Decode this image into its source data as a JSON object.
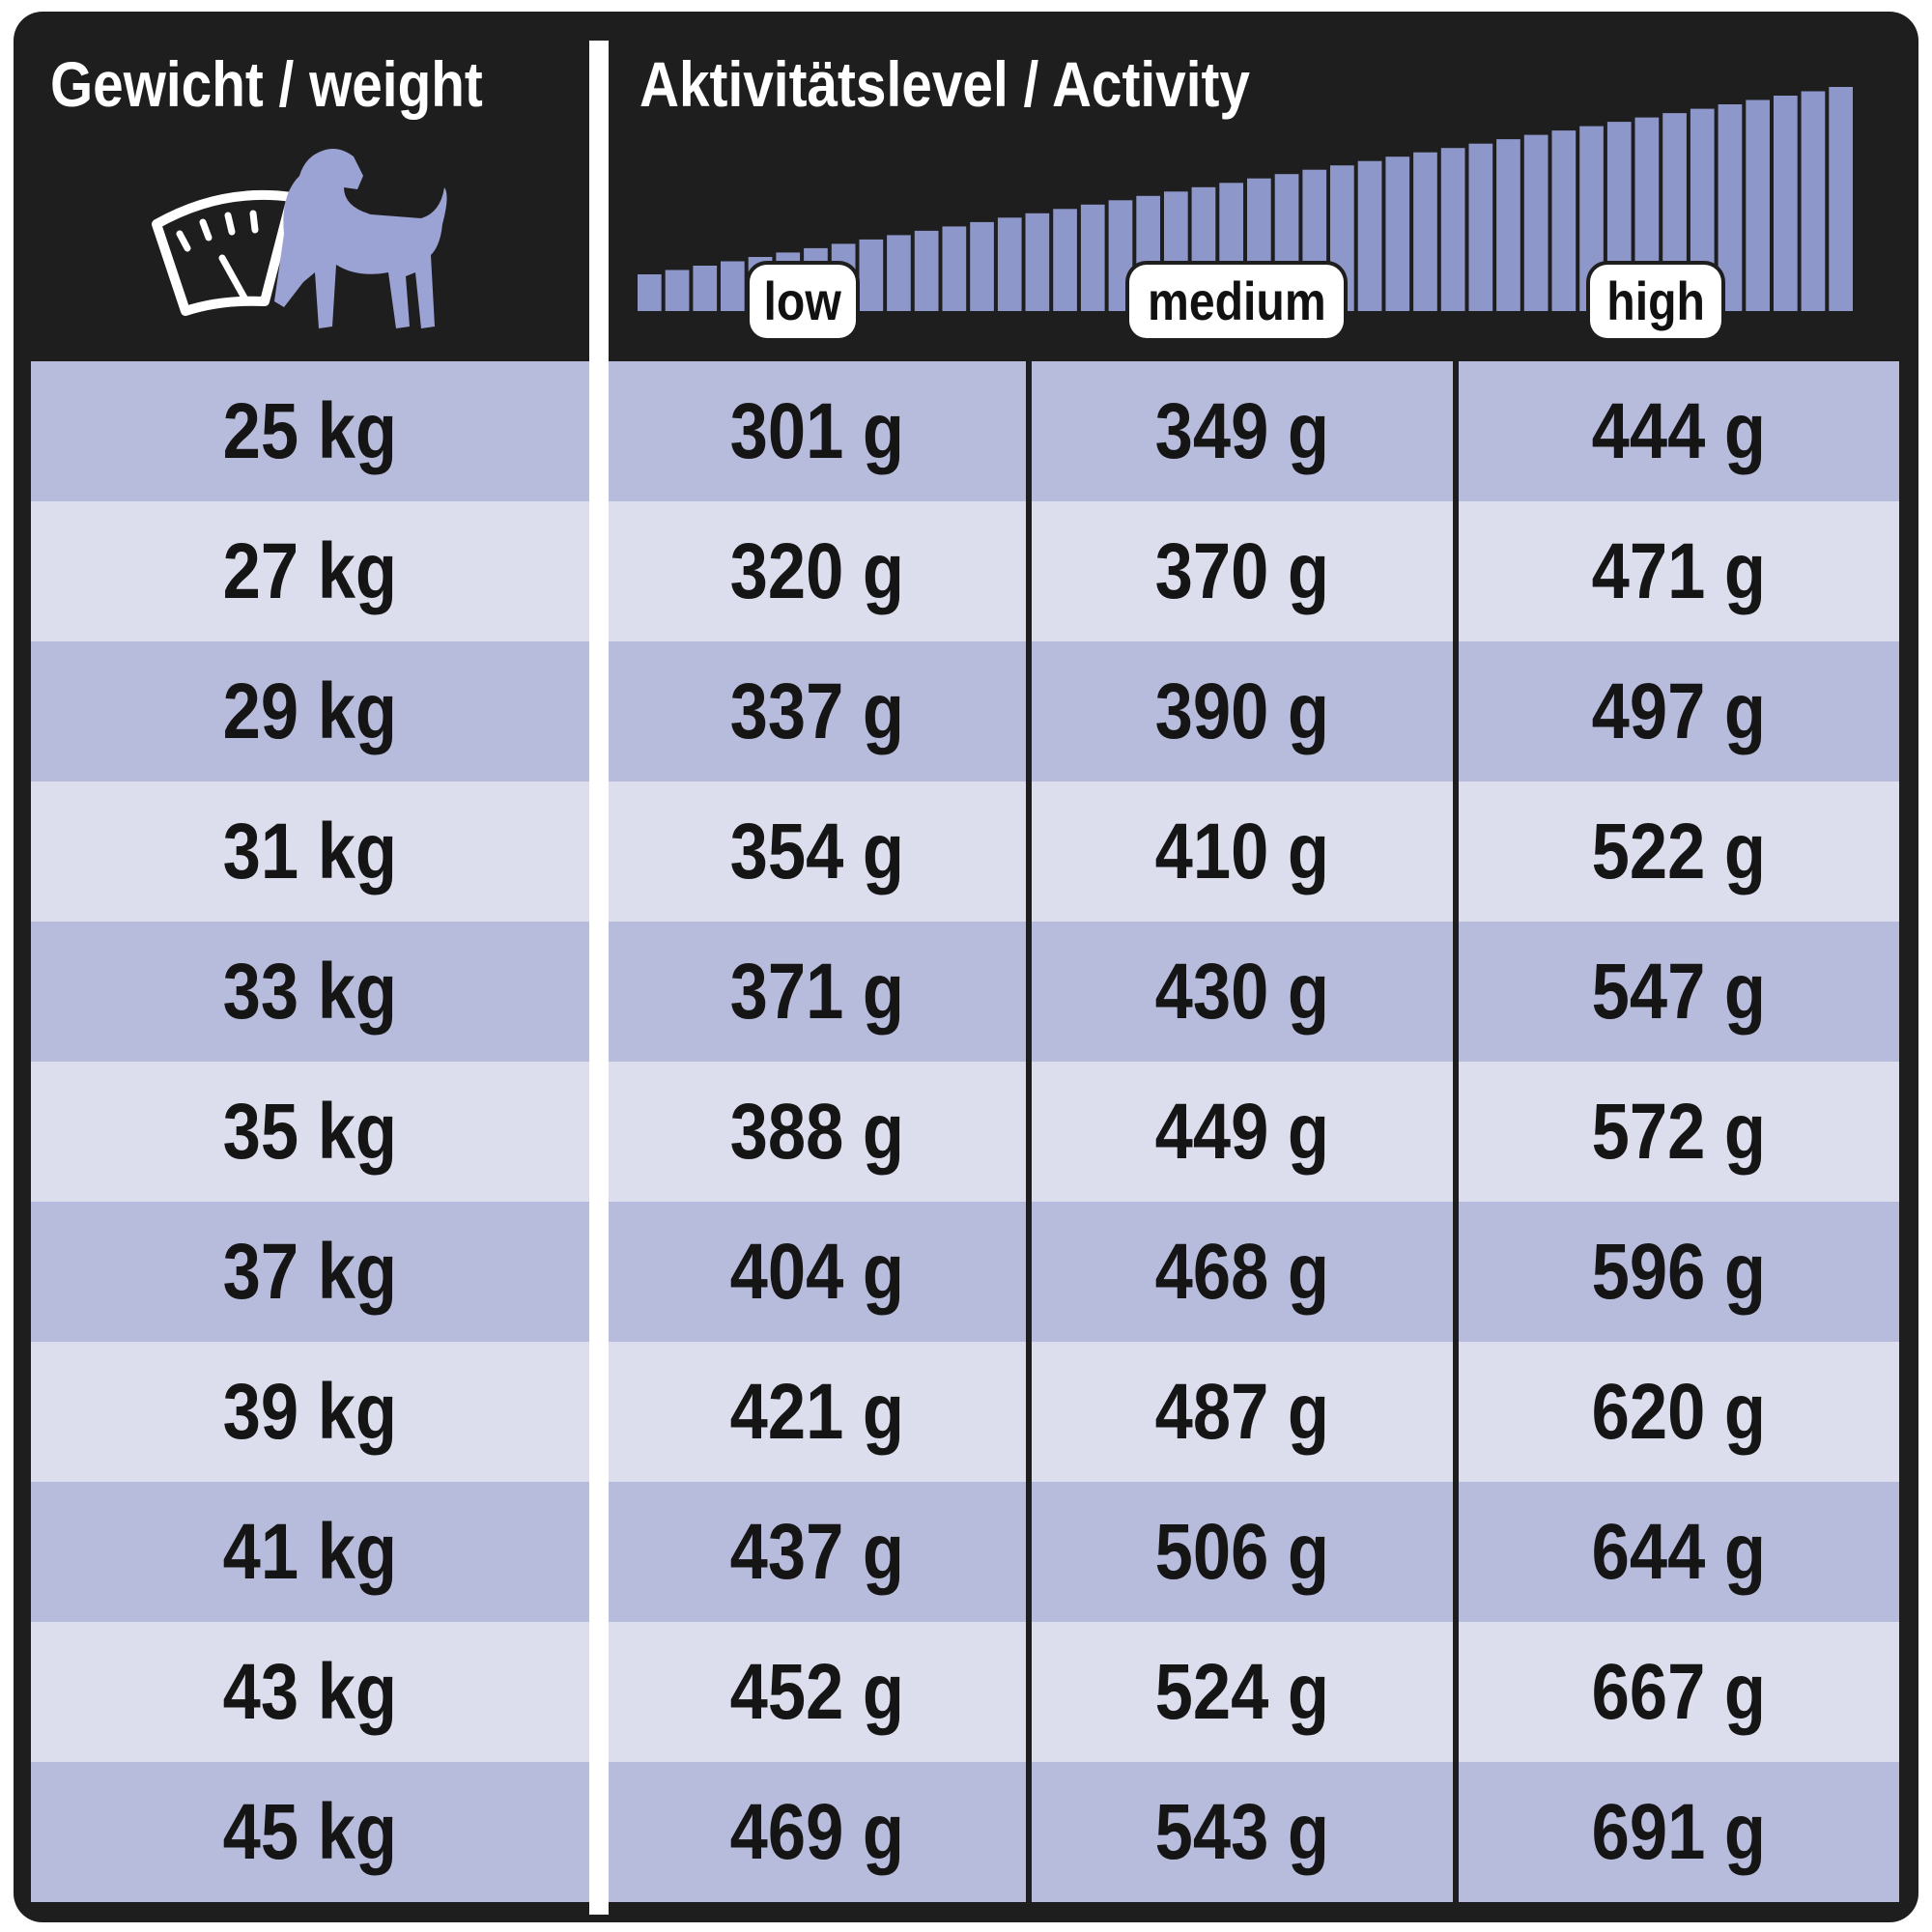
{
  "header": {
    "weight_title": "Gewicht / weight",
    "activity_title": "Aktivitätslevel / Activity",
    "activity_levels": [
      "low",
      "medium",
      "high"
    ]
  },
  "icons": {
    "weight_icon": "scale-with-dog-icon",
    "activity_icon": "increasing-bars-icon"
  },
  "colors": {
    "frame": "#1e1e1e",
    "row_dark": "#b8bcdc",
    "row_light": "#dcdeed",
    "accent": "#8e97c9",
    "text": "#151515"
  },
  "chart_data": {
    "type": "table",
    "columns": [
      "Gewicht / weight",
      "low",
      "medium",
      "high"
    ],
    "rows": [
      [
        "25 kg",
        "301 g",
        "349 g",
        "444 g"
      ],
      [
        "27 kg",
        "320 g",
        "370 g",
        "471 g"
      ],
      [
        "29 kg",
        "337 g",
        "390 g",
        "497 g"
      ],
      [
        "31 kg",
        "354 g",
        "410 g",
        "522 g"
      ],
      [
        "33 kg",
        "371 g",
        "430 g",
        "547 g"
      ],
      [
        "35 kg",
        "388 g",
        "449 g",
        "572 g"
      ],
      [
        "37 kg",
        "404 g",
        "468 g",
        "596 g"
      ],
      [
        "39 kg",
        "421 g",
        "487 g",
        "620 g"
      ],
      [
        "41 kg",
        "437 g",
        "506 g",
        "644 g"
      ],
      [
        "43 kg",
        "452 g",
        "524 g",
        "667 g"
      ],
      [
        "45 kg",
        "469 g",
        "543 g",
        "691 g"
      ]
    ]
  }
}
